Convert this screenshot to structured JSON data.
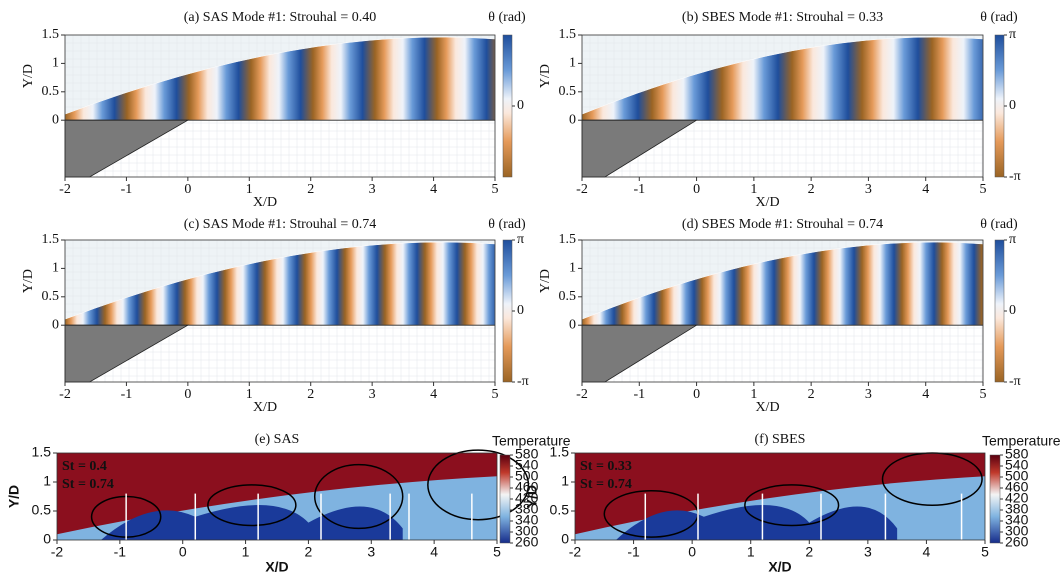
{
  "chart_data": [
    {
      "type": "contour",
      "title": "(a) SAS Mode #1: Strouhal = 0.40",
      "xlabel": "X/D",
      "ylabel": "Y/D",
      "xlim": [
        -2,
        5
      ],
      "ylim": [
        -1,
        1.5
      ],
      "xticks": [
        -2,
        -1,
        0,
        1,
        2,
        3,
        4,
        5
      ],
      "yticks": [
        0,
        0.5,
        1,
        1.5
      ],
      "colorbar": {
        "label": "θ (rad)",
        "lim": [
          -3.14159,
          3.14159
        ],
        "ticks": [
          0
        ]
      }
    },
    {
      "type": "contour",
      "title": "(b) SBES Mode #1: Strouhal = 0.33",
      "xlabel": "X/D",
      "ylabel": "Y/D",
      "xlim": [
        -2,
        5
      ],
      "ylim": [
        -1,
        1.5
      ],
      "xticks": [
        -2,
        -1,
        0,
        1,
        2,
        3,
        4,
        5
      ],
      "yticks": [
        0,
        0.5,
        1,
        1.5
      ],
      "colorbar": {
        "label": "θ (rad)",
        "lim": [
          -3.14159,
          3.14159
        ],
        "ticks": [
          {
            "value": 3.14159,
            "label": "π"
          },
          0,
          {
            "value": -3.14159,
            "label": "-π"
          }
        ]
      }
    },
    {
      "type": "contour",
      "title": "(c) SAS Mode #1: Strouhal = 0.74",
      "xlabel": "X/D",
      "ylabel": "Y/D",
      "xlim": [
        -2,
        5
      ],
      "ylim": [
        -1,
        1.5
      ],
      "xticks": [
        -2,
        -1,
        0,
        1,
        2,
        3,
        4,
        5
      ],
      "yticks": [
        0,
        0.5,
        1,
        1.5
      ],
      "colorbar": {
        "label": "θ (rad)",
        "lim": [
          -3.14159,
          3.14159
        ],
        "ticks": [
          {
            "value": 3.14159,
            "label": "π"
          },
          0,
          {
            "value": -3.14159,
            "label": "-π"
          }
        ]
      }
    },
    {
      "type": "contour",
      "title": "(d) SBES Mode #1: Strouhal = 0.74",
      "xlabel": "X/D",
      "ylabel": "Y/D",
      "xlim": [
        -2,
        5
      ],
      "ylim": [
        -1,
        1.5
      ],
      "xticks": [
        -2,
        -1,
        0,
        1,
        2,
        3,
        4,
        5
      ],
      "yticks": [
        0,
        0.5,
        1,
        1.5
      ],
      "colorbar": {
        "label": "θ (rad)",
        "lim": [
          -3.14159,
          3.14159
        ],
        "ticks": [
          {
            "value": 3.14159,
            "label": "π"
          },
          0,
          {
            "value": -3.14159,
            "label": "-π"
          }
        ]
      }
    },
    {
      "type": "temperature",
      "title": "(e) SAS",
      "xlabel": "X/D",
      "ylabel": "Y/D",
      "xlim": [
        -2,
        5
      ],
      "ylim": [
        0,
        1.5
      ],
      "xticks": [
        -2,
        -1,
        0,
        1,
        2,
        3,
        4,
        5
      ],
      "yticks": [
        0,
        0.5,
        1,
        1.5
      ],
      "annotations": [
        "St = 0.4",
        "St = 0.74"
      ],
      "colorbar": {
        "label": "Temperature",
        "lim": [
          260,
          580
        ],
        "ticks": [
          580,
          540,
          500,
          460,
          420,
          380,
          340,
          300,
          260
        ]
      }
    },
    {
      "type": "temperature",
      "title": "(f) SBES",
      "xlabel": "X/D",
      "ylabel": "Y/D",
      "xlim": [
        -2,
        5
      ],
      "ylim": [
        0,
        1.5
      ],
      "xticks": [
        -2,
        -1,
        0,
        1,
        2,
        3,
        4,
        5
      ],
      "yticks": [
        0,
        0.5,
        1,
        1.5
      ],
      "annotations": [
        "St = 0.33",
        "St = 0.74"
      ],
      "colorbar": {
        "label": "Temperature",
        "lim": [
          260,
          580
        ],
        "ticks": [
          580,
          540,
          500,
          460,
          420,
          380,
          340,
          300,
          260
        ]
      }
    }
  ]
}
